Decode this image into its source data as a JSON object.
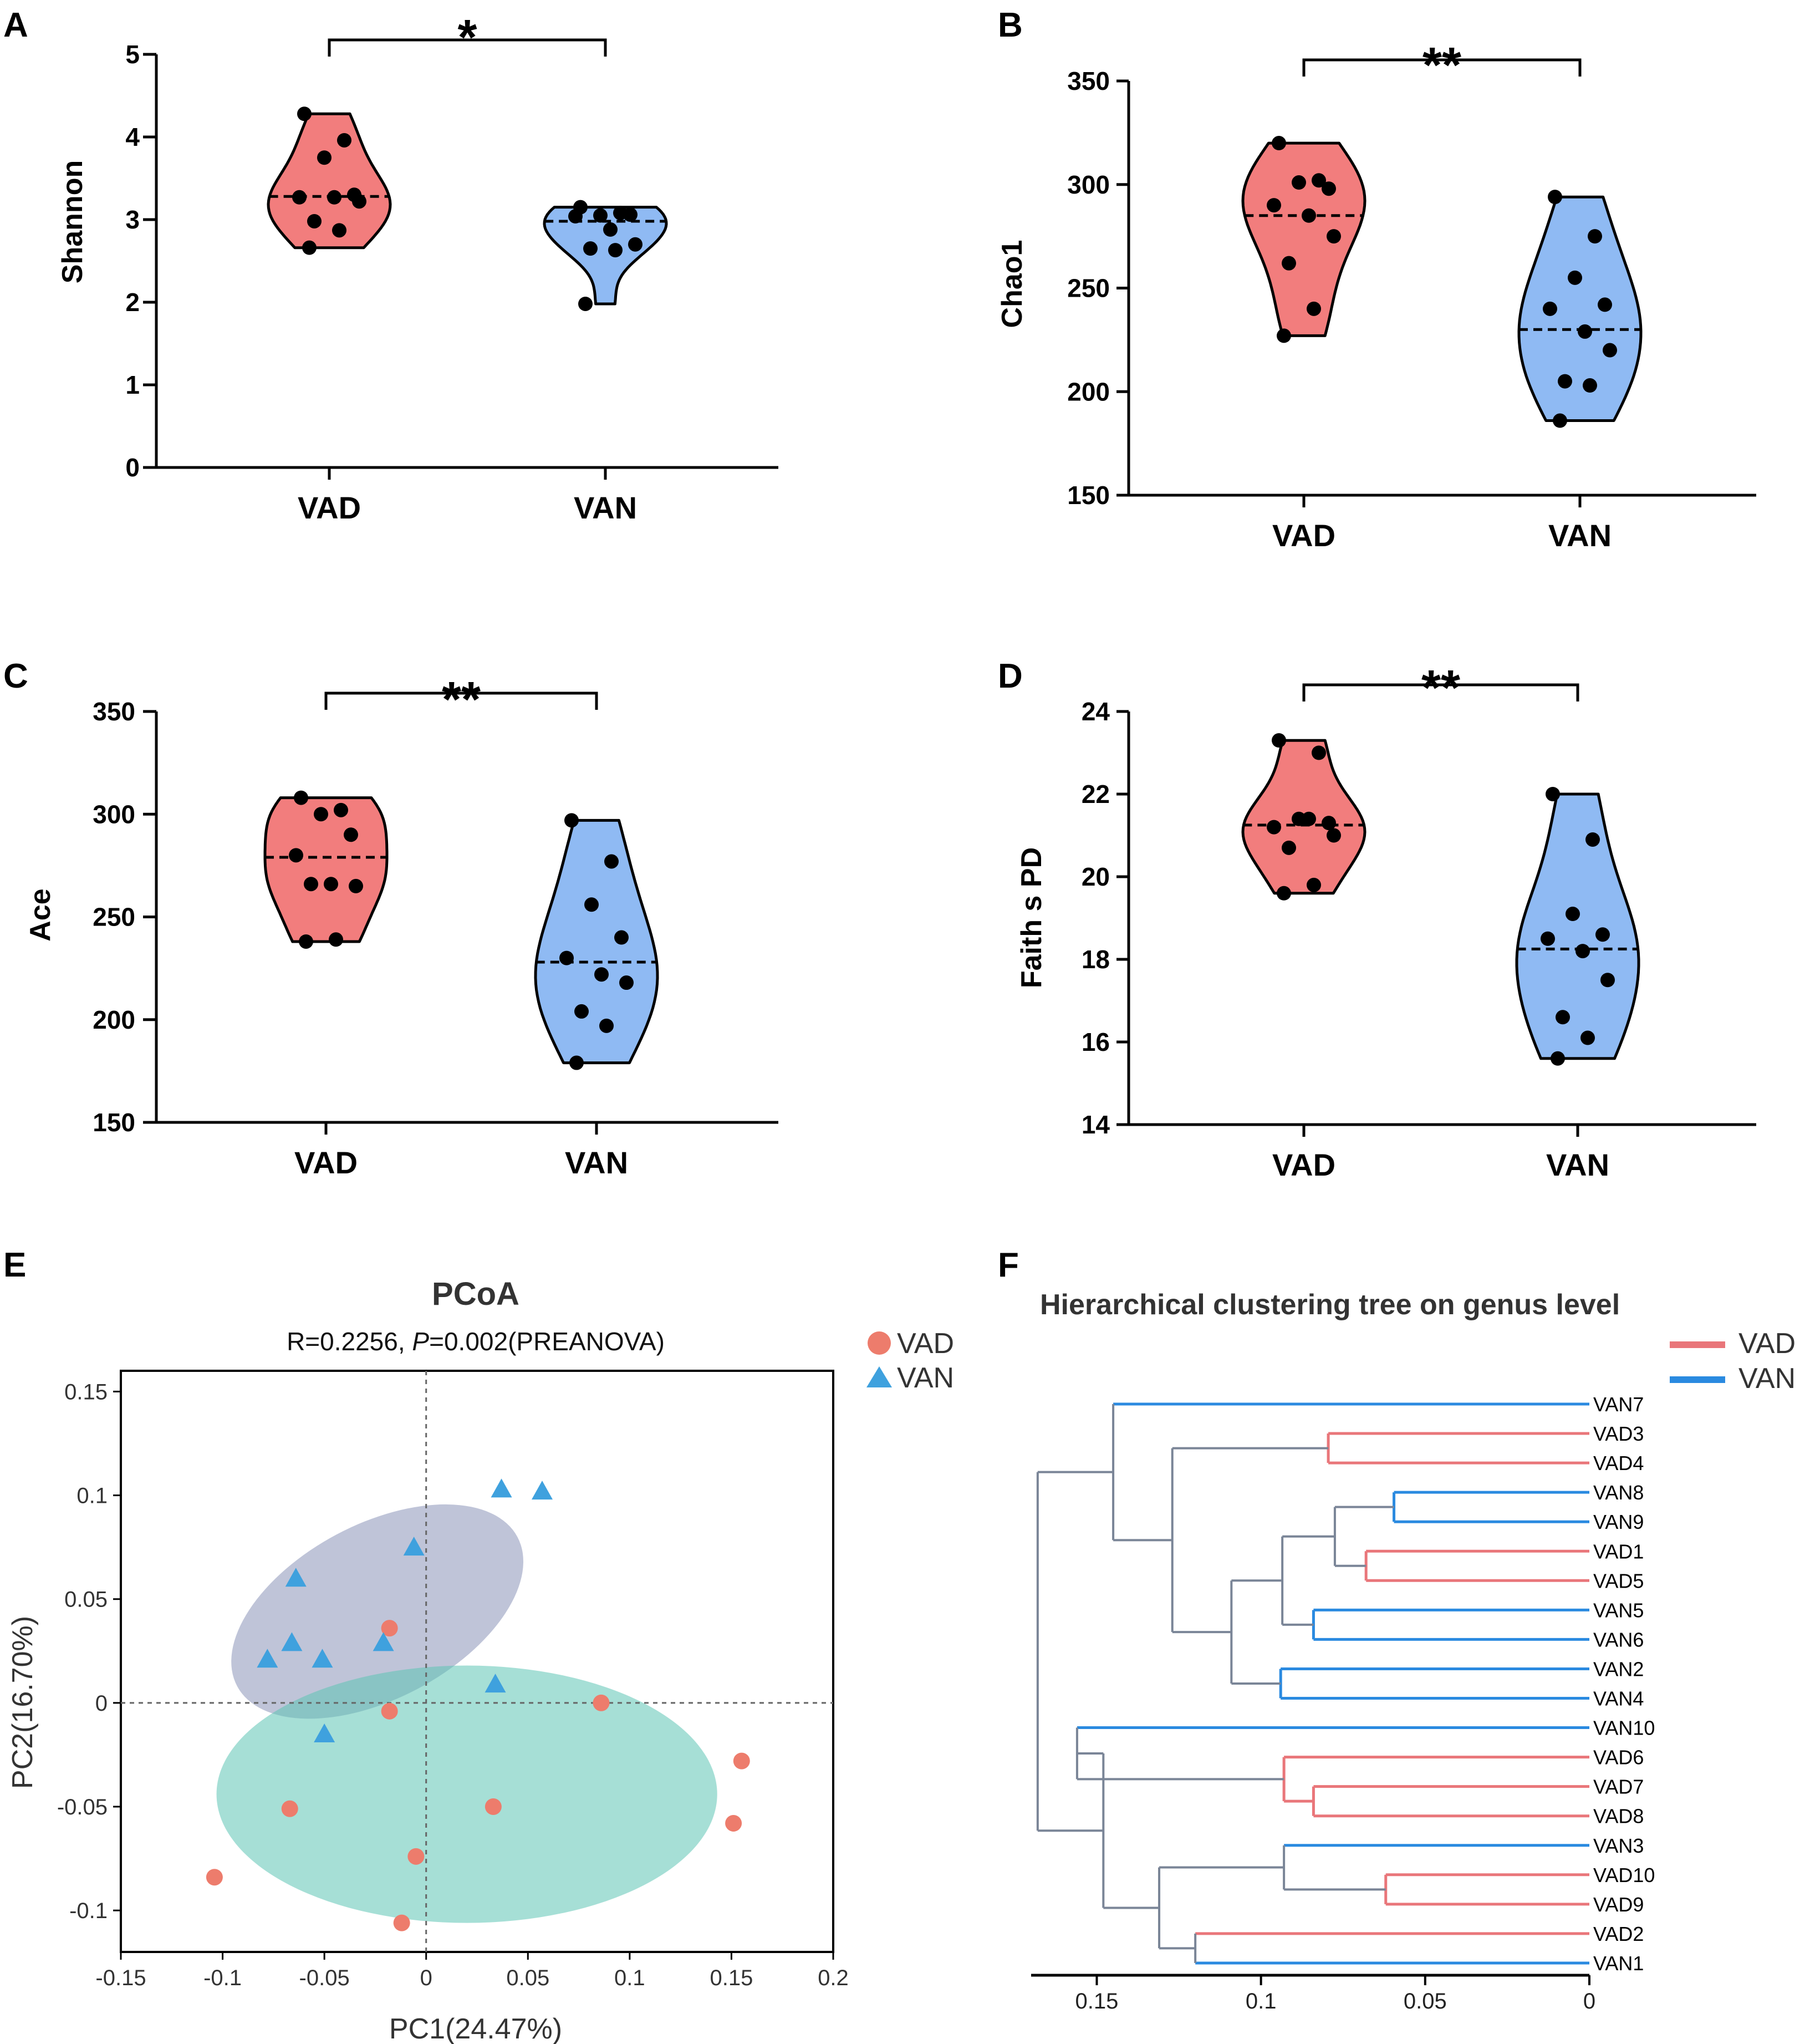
{
  "colors": {
    "vad": "#f27d7d",
    "van": "#8fbaf3",
    "vad_point": "#ed7c6c",
    "van_point": "#3fa1de",
    "ellipse_van": "#8a93b8",
    "ellipse_vad": "#5dc5b5",
    "tree_vad": "#e9767a",
    "tree_van": "#2a8ae0",
    "tree_node": "#7a8597"
  },
  "panels": {
    "A": {
      "letter": "A",
      "ylabel": "Shannon",
      "yticks": [
        "0",
        "1",
        "2",
        "3",
        "4",
        "5"
      ],
      "categories": [
        "VAD",
        "VAN"
      ],
      "significance": "*"
    },
    "B": {
      "letter": "B",
      "ylabel": "Chao1",
      "yticks": [
        "150",
        "200",
        "250",
        "300",
        "350"
      ],
      "categories": [
        "VAD",
        "VAN"
      ],
      "significance": "**"
    },
    "C": {
      "letter": "C",
      "ylabel": "Ace",
      "yticks": [
        "150",
        "200",
        "250",
        "300",
        "350"
      ],
      "categories": [
        "VAD",
        "VAN"
      ],
      "significance": "**"
    },
    "D": {
      "letter": "D",
      "ylabel": "Faith s PD",
      "yticks": [
        "14",
        "16",
        "18",
        "20",
        "22",
        "24"
      ],
      "categories": [
        "VAD",
        "VAN"
      ],
      "significance": "**"
    },
    "E": {
      "letter": "E",
      "title": "PCoA",
      "stat_r": "R=0.2256, ",
      "stat_p_symbol": "P",
      "stat_p_value": "=0.002(PREANOVA)",
      "xlabel": "PC1(24.47%)",
      "ylabel": "PC2(16.70%)",
      "xticks": [
        "-0.15",
        "-0.1",
        "-0.05",
        "0",
        "0.05",
        "0.1",
        "0.15",
        "0.2"
      ],
      "yticks": [
        "-0.1",
        "-0.05",
        "0",
        "0.05",
        "0.1",
        "0.15"
      ],
      "legend": [
        {
          "label": "VAD",
          "shape": "circle"
        },
        {
          "label": "VAN",
          "shape": "triangle"
        }
      ]
    },
    "F": {
      "letter": "F",
      "title": "Hierarchical clustering tree on genus level",
      "xticks": [
        "0.15",
        "0.1",
        "0.05",
        "0"
      ],
      "legend": [
        {
          "label": "VAD"
        },
        {
          "label": "VAN"
        }
      ],
      "leaves": [
        "VAN7",
        "VAD3",
        "VAD4",
        "VAN8",
        "VAN9",
        "VAD1",
        "VAD5",
        "VAN5",
        "VAN6",
        "VAN2",
        "VAN4",
        "VAN10",
        "VAD6",
        "VAD7",
        "VAD8",
        "VAN3",
        "VAD10",
        "VAD9",
        "VAD2",
        "VAN1"
      ]
    }
  },
  "chart_data": [
    {
      "type": "violin",
      "panel": "A",
      "ylabel": "Shannon",
      "ylim": [
        0,
        5
      ],
      "categories": [
        "VAD",
        "VAN"
      ],
      "series": [
        {
          "name": "VAD",
          "values": [
            4.28,
            3.96,
            3.75,
            3.3,
            3.27,
            3.27,
            3.22,
            2.98,
            2.87,
            2.66
          ],
          "median": 3.28,
          "range": [
            2.66,
            4.28
          ]
        },
        {
          "name": "VAN",
          "values": [
            3.15,
            3.08,
            3.05,
            3.06,
            3.04,
            2.88,
            2.7,
            2.65,
            2.63,
            1.98
          ],
          "median": 2.98,
          "range": [
            1.98,
            3.15
          ]
        }
      ],
      "significance": "*"
    },
    {
      "type": "violin",
      "panel": "B",
      "ylabel": "Chao1",
      "ylim": [
        150,
        350
      ],
      "categories": [
        "VAD",
        "VAN"
      ],
      "series": [
        {
          "name": "VAD",
          "values": [
            320,
            302,
            301,
            298,
            290,
            285,
            275,
            262,
            240,
            227
          ],
          "median": 285,
          "range": [
            227,
            320
          ]
        },
        {
          "name": "VAN",
          "values": [
            294,
            275,
            255,
            242,
            240,
            229,
            220,
            205,
            203,
            186
          ],
          "median": 230,
          "range": [
            186,
            294
          ]
        }
      ],
      "significance": "**"
    },
    {
      "type": "violin",
      "panel": "C",
      "ylabel": "Ace",
      "ylim": [
        150,
        350
      ],
      "categories": [
        "VAD",
        "VAN"
      ],
      "series": [
        {
          "name": "VAD",
          "values": [
            308,
            302,
            300,
            290,
            280,
            266,
            265,
            266,
            239,
            238
          ],
          "median": 279,
          "range": [
            238,
            308
          ]
        },
        {
          "name": "VAN",
          "values": [
            297,
            277,
            256,
            240,
            230,
            222,
            218,
            204,
            197,
            179
          ],
          "median": 228,
          "range": [
            179,
            297
          ]
        }
      ],
      "significance": "**"
    },
    {
      "type": "violin",
      "panel": "D",
      "ylabel": "Faith s PD",
      "ylim": [
        14,
        24
      ],
      "categories": [
        "VAD",
        "VAN"
      ],
      "series": [
        {
          "name": "VAD",
          "values": [
            23.3,
            23.0,
            21.4,
            21.3,
            21.2,
            21.4,
            21.0,
            20.7,
            19.8,
            19.6
          ],
          "median": 21.25,
          "range": [
            19.6,
            23.3
          ]
        },
        {
          "name": "VAN",
          "values": [
            22.0,
            20.9,
            19.1,
            18.6,
            18.5,
            18.2,
            17.5,
            16.6,
            16.1,
            15.6
          ],
          "median": 18.25,
          "range": [
            15.6,
            22.0
          ]
        }
      ],
      "significance": "**"
    },
    {
      "type": "scatter",
      "panel": "E",
      "title": "PCoA",
      "xlabel": "PC1(24.47%)",
      "ylabel": "PC2(16.70%)",
      "xlim": [
        -0.15,
        0.2
      ],
      "ylim": [
        -0.12,
        0.16
      ],
      "series": [
        {
          "name": "VAD",
          "points": [
            [
              -0.018,
              0.036
            ],
            [
              -0.018,
              -0.004
            ],
            [
              0.086,
              0.0
            ],
            [
              -0.067,
              -0.051
            ],
            [
              0.033,
              -0.05
            ],
            [
              -0.005,
              -0.074
            ],
            [
              -0.104,
              -0.084
            ],
            [
              -0.012,
              -0.106
            ],
            [
              0.155,
              -0.028
            ],
            [
              0.151,
              -0.058
            ]
          ]
        },
        {
          "name": "VAN",
          "points": [
            [
              0.037,
              0.103
            ],
            [
              0.057,
              0.102
            ],
            [
              -0.006,
              0.075
            ],
            [
              -0.064,
              0.06
            ],
            [
              -0.066,
              0.029
            ],
            [
              -0.078,
              0.021
            ],
            [
              -0.051,
              0.021
            ],
            [
              -0.021,
              0.029
            ],
            [
              0.034,
              0.009
            ],
            [
              -0.05,
              -0.015
            ]
          ]
        }
      ],
      "ellipses": [
        {
          "group": "VAN",
          "center": [
            -0.024,
            0.044
          ],
          "rx": 0.078,
          "ry": 0.042,
          "angle_deg": -28
        },
        {
          "group": "VAD",
          "center": [
            0.02,
            -0.044
          ],
          "rx": 0.123,
          "ry": 0.062,
          "angle_deg": 0
        }
      ]
    },
    {
      "type": "dendrogram",
      "panel": "F",
      "title": "Hierarchical clustering tree on genus level",
      "xlim": [
        0.17,
        0
      ],
      "leaf_order": [
        "VAN7",
        "VAD3",
        "VAD4",
        "VAN8",
        "VAN9",
        "VAD1",
        "VAD5",
        "VAN5",
        "VAN6",
        "VAN2",
        "VAN4",
        "VAN10",
        "VAD6",
        "VAD7",
        "VAD8",
        "VAN3",
        "VAD10",
        "VAD9",
        "VAD2",
        "VAN1"
      ],
      "merges": [
        {
          "a": "VAD3",
          "b": "VAD4",
          "height": 0.0795,
          "group": "VAD"
        },
        {
          "a": "VAN8",
          "b": "VAN9",
          "height": 0.0595,
          "group": "VAN"
        },
        {
          "a": "VAD1",
          "b": "VAD5",
          "height": 0.068,
          "group": "VAD"
        },
        {
          "a": "[VAN8,VAN9]",
          "b": "[VAD1,VAD5]",
          "height": 0.0775,
          "group": "node"
        },
        {
          "a": "VAN5",
          "b": "VAN6",
          "height": 0.084,
          "group": "VAN"
        },
        {
          "a": "[VAN8..VAD5]",
          "b": "[VAN5,VAN6]",
          "height": 0.0935,
          "group": "node"
        },
        {
          "a": "VAN2",
          "b": "VAN4",
          "height": 0.094,
          "group": "VAN"
        },
        {
          "a": "[VAN8..VAN6]",
          "b": "[VAN2,VAN4]",
          "height": 0.109,
          "group": "node"
        },
        {
          "a": "[VAD3,VAD4]",
          "b": "[VAN8..VAN4]",
          "height": 0.127,
          "group": "node"
        },
        {
          "a": "VAN7",
          "b": "[VAD3..VAN4]",
          "height": 0.145,
          "group": "node"
        },
        {
          "a": "VAD7",
          "b": "VAD8",
          "height": 0.084,
          "group": "VAD"
        },
        {
          "a": "VAD6",
          "b": "[VAD7,VAD8]",
          "height": 0.093,
          "group": "VAD"
        },
        {
          "a": "VAN10",
          "b": "[VAD6..VAD8]",
          "height": 0.156,
          "group": "node"
        },
        {
          "a": "VAD10",
          "b": "VAD9",
          "height": 0.062,
          "group": "VAD"
        },
        {
          "a": "VAN3",
          "b": "[VAD10,VAD9]",
          "height": 0.093,
          "group": "node"
        },
        {
          "a": "VAD2",
          "b": "VAN1",
          "height": 0.12,
          "group": "node"
        },
        {
          "a": "[VAN3..VAD9]",
          "b": "[VAD2,VAN1]",
          "height": 0.131,
          "group": "node"
        },
        {
          "a": "[VAN10..VAD8]",
          "b": "[VAN3..VAN1]",
          "height": 0.148,
          "group": "node"
        },
        {
          "a": "[VAN7..VAN4]",
          "b": "[VAN10..VAN1]",
          "height": 0.168,
          "group": "node"
        }
      ]
    }
  ]
}
